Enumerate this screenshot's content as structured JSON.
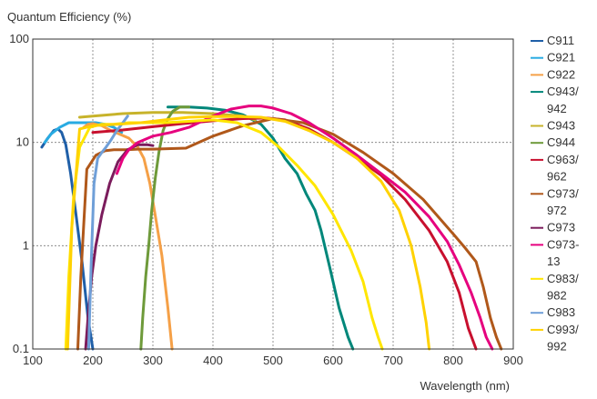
{
  "chart_data": {
    "type": "line",
    "ylabel": "Quantum Efficiency (%)",
    "xlabel": "Wavelength (nm)",
    "x_scale": "linear",
    "y_scale": "log",
    "xlim": [
      100,
      900
    ],
    "ylim": [
      0.1,
      100
    ],
    "x_ticks": [
      100,
      200,
      300,
      400,
      500,
      600,
      700,
      800,
      900
    ],
    "y_ticks": [
      0.1,
      1,
      10,
      100
    ],
    "y_tick_labels": [
      "0.1",
      "1",
      "10",
      "100"
    ],
    "grid": true,
    "legend_position": "right",
    "series": [
      {
        "name": "C911",
        "color": "#1f5fa8",
        "x": [
          115,
          125,
          135,
          142,
          148,
          155,
          163,
          172,
          182,
          192,
          200
        ],
        "y": [
          9,
          11,
          13,
          13.5,
          12.5,
          9.5,
          5,
          2,
          0.7,
          0.2,
          0.1
        ]
      },
      {
        "name": "C921",
        "color": "#29abe2",
        "x": [
          120,
          130,
          145,
          160,
          175,
          190,
          205,
          220,
          235,
          248
        ],
        "y": [
          10,
          12,
          14,
          15.5,
          15.5,
          15.5,
          15.5,
          15,
          14,
          12.5
        ]
      },
      {
        "name": "C922",
        "color": "#f5a047",
        "x": [
          185,
          192,
          200,
          215,
          230,
          245,
          260,
          275,
          285,
          295,
          305,
          315,
          325,
          332
        ],
        "y": [
          14,
          15,
          15.2,
          14.5,
          13,
          12,
          11,
          9,
          7,
          4,
          1.8,
          0.8,
          0.25,
          0.1
        ]
      },
      {
        "name": "C943/942",
        "color": "#00877a",
        "x": [
          325,
          340,
          360,
          390,
          420,
          450,
          480,
          500,
          520,
          540,
          555,
          570,
          580,
          595,
          610,
          625,
          633
        ],
        "y": [
          22,
          22,
          22,
          21.5,
          20.5,
          18.5,
          15,
          11,
          7,
          5,
          3.2,
          2.2,
          1.4,
          0.6,
          0.25,
          0.13,
          0.1
        ]
      },
      {
        "name": "C943",
        "color": "#c7b32b",
        "x": [
          178,
          200,
          250,
          300,
          350,
          400,
          450,
          470
        ],
        "y": [
          17.5,
          18,
          19,
          19.5,
          19.5,
          19,
          18,
          16.5
        ]
      },
      {
        "name": "C944",
        "color": "#6e9a3a",
        "x": [
          280,
          283,
          288,
          293,
          298,
          304,
          310,
          317,
          325,
          333,
          345,
          360
        ],
        "y": [
          0.1,
          0.2,
          0.5,
          1,
          2.2,
          4.5,
          8,
          13,
          17,
          20,
          22,
          22
        ]
      },
      {
        "name": "C963/962",
        "color": "#c8102e",
        "x": [
          200,
          250,
          300,
          350,
          400,
          450,
          490,
          520,
          560,
          600,
          640,
          680,
          720,
          760,
          790,
          810,
          825,
          838
        ],
        "y": [
          12.5,
          13.2,
          14.2,
          15.2,
          16.2,
          17,
          17.2,
          16.5,
          13.5,
          10,
          7,
          4.8,
          2.8,
          1.4,
          0.7,
          0.35,
          0.16,
          0.1
        ]
      },
      {
        "name": "C973/972",
        "color": "#b0581a",
        "x": [
          175,
          180,
          190,
          205,
          220,
          235,
          255,
          275,
          300,
          330,
          355,
          400,
          450,
          500,
          550,
          600,
          650,
          700,
          750,
          800,
          820,
          838,
          850,
          862,
          872,
          880
        ],
        "y": [
          0.1,
          0.5,
          5.5,
          7.5,
          8.3,
          8.5,
          8.5,
          8.6,
          8.6,
          8.7,
          8.8,
          11.5,
          14.5,
          17,
          15.5,
          12,
          8,
          5,
          2.8,
          1.3,
          0.95,
          0.7,
          0.4,
          0.2,
          0.13,
          0.1
        ]
      },
      {
        "name": "C973",
        "color": "#7b1c5c",
        "x": [
          188,
          192,
          198,
          205,
          215,
          228,
          242,
          258,
          275,
          290,
          300
        ],
        "y": [
          0.1,
          0.2,
          0.5,
          1,
          2,
          4,
          6.5,
          8.5,
          9.5,
          9.5,
          9.3
        ]
      },
      {
        "name": "C973-13",
        "color": "#e6007e",
        "x": [
          240,
          250,
          260,
          275,
          300,
          330,
          360,
          400,
          430,
          460,
          480,
          500,
          530,
          560,
          600,
          640,
          680,
          720,
          760,
          790,
          810,
          830,
          845,
          855,
          865
        ],
        "y": [
          5,
          7,
          8.5,
          10,
          11.5,
          12.5,
          14,
          18,
          21,
          22.5,
          22.5,
          21.5,
          19,
          15.5,
          11,
          7.5,
          5,
          3.3,
          1.9,
          1.1,
          0.65,
          0.35,
          0.2,
          0.13,
          0.1
        ]
      },
      {
        "name": "C983/982",
        "color": "#ffe600",
        "x": [
          155,
          160,
          168,
          178,
          195,
          215,
          235,
          260,
          290,
          320,
          360,
          400,
          440,
          480,
          510,
          540,
          570,
          600,
          630,
          650,
          665,
          675,
          682
        ],
        "y": [
          0.1,
          0.5,
          3,
          9,
          14,
          15,
          15,
          15.5,
          15.5,
          15.5,
          16,
          16.5,
          15.5,
          12.5,
          9,
          6,
          3.8,
          2,
          0.9,
          0.45,
          0.2,
          0.13,
          0.1
        ]
      },
      {
        "name": "C983",
        "color": "#6f9fd8",
        "x": [
          193,
          197,
          202,
          208,
          215,
          222,
          230,
          240,
          250,
          258
        ],
        "y": [
          0.1,
          0.6,
          4,
          7,
          8,
          9,
          10.5,
          13,
          15.5,
          18
        ]
      },
      {
        "name": "C993/992",
        "color": "#ffd200",
        "x": [
          158,
          165,
          178,
          200,
          240,
          280,
          320,
          360,
          400,
          440,
          480,
          520,
          560,
          600,
          640,
          680,
          710,
          730,
          745,
          755,
          760
        ],
        "y": [
          0.1,
          1.5,
          13.5,
          14.5,
          15,
          15.5,
          16.5,
          17.5,
          17.8,
          17.8,
          17.5,
          16,
          13,
          10,
          7,
          4.2,
          2.2,
          1,
          0.4,
          0.18,
          0.1
        ]
      }
    ]
  }
}
